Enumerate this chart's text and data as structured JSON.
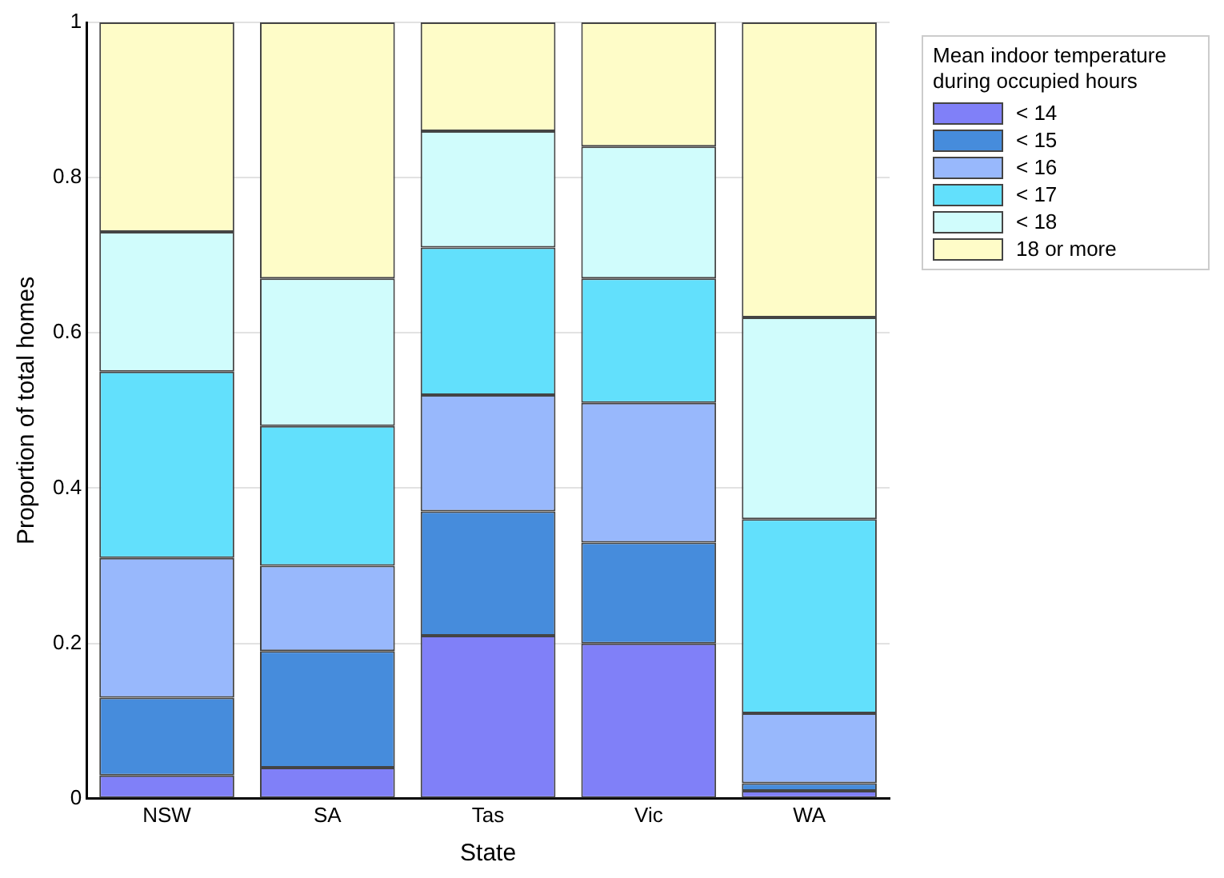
{
  "chart_data": {
    "type": "bar",
    "stacked": true,
    "xlabel": "State",
    "ylabel": "Proportion of total homes",
    "legend_title": "Mean indoor temperature during occupied hours",
    "legend": "top right",
    "grid": "y",
    "categories": [
      "NSW",
      "SA",
      "Tas",
      "Vic",
      "WA"
    ],
    "ylim": [
      0,
      1
    ],
    "yticks": [
      0,
      0.2,
      0.4,
      0.6,
      0.8,
      1
    ],
    "series": [
      {
        "name": "< 14",
        "color": "#8080f8",
        "values": [
          0.03,
          0.04,
          0.21,
          0.2,
          0.01
        ]
      },
      {
        "name": "< 15",
        "color": "#468cdc",
        "values": [
          0.1,
          0.15,
          0.16,
          0.13,
          0.01
        ]
      },
      {
        "name": "< 16",
        "color": "#98b8fc",
        "values": [
          0.18,
          0.11,
          0.15,
          0.18,
          0.09
        ]
      },
      {
        "name": "< 17",
        "color": "#62e0fc",
        "values": [
          0.24,
          0.18,
          0.19,
          0.16,
          0.25
        ]
      },
      {
        "name": "< 18",
        "color": "#d0fcfc",
        "values": [
          0.18,
          0.19,
          0.15,
          0.17,
          0.26
        ]
      },
      {
        "name": "18 or more",
        "color": "#fefcc8",
        "values": [
          0.27,
          0.33,
          0.14,
          0.16,
          0.38
        ]
      }
    ]
  }
}
